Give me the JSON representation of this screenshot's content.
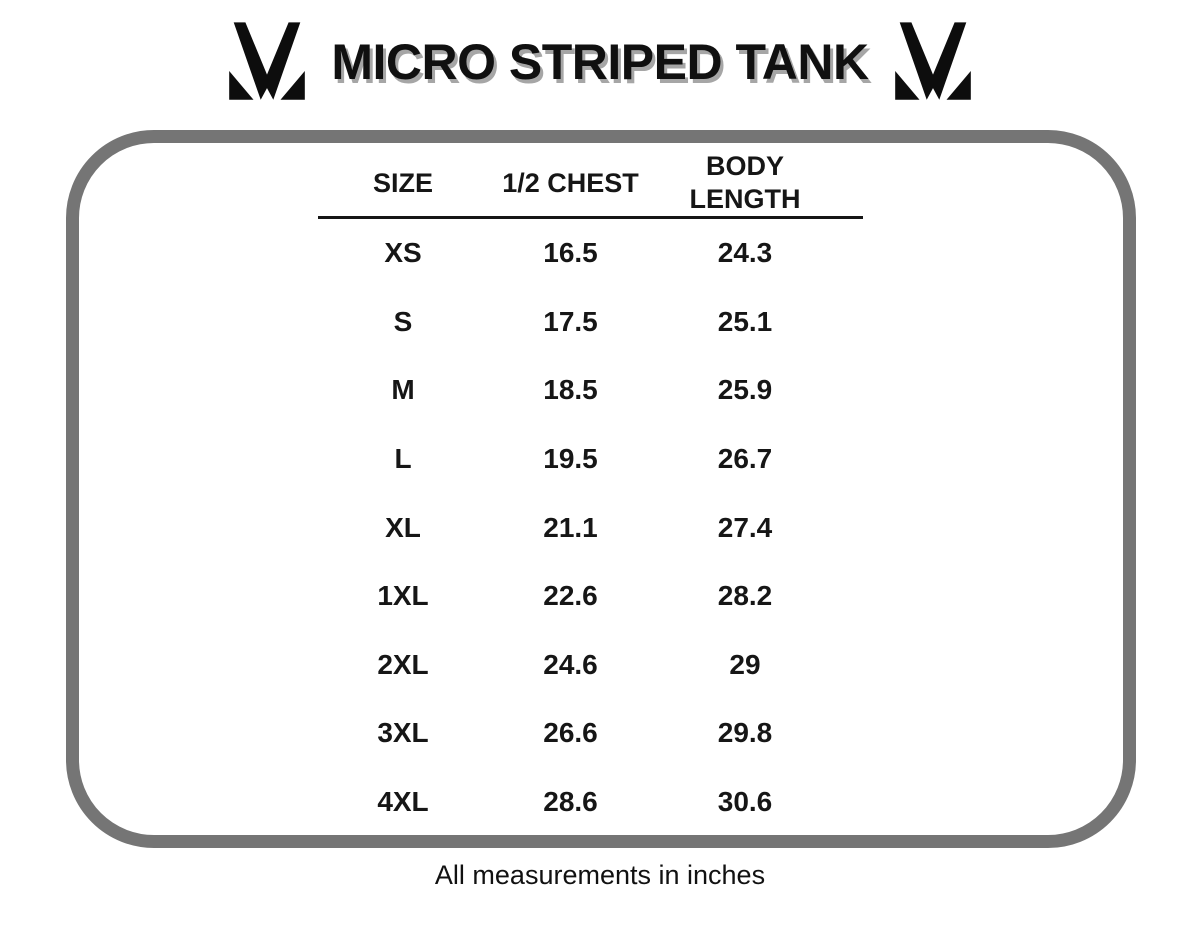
{
  "header": {
    "title": "MICRO STRIPED TANK",
    "logo_icon": "m-checkmark-logo"
  },
  "footer": {
    "note": "All measurements in inches"
  },
  "colors": {
    "text": "#161616",
    "box_border": "#757575",
    "title_shadow": "#a6a6a6",
    "background": "#ffffff"
  },
  "chart_data": {
    "type": "table",
    "title": "MICRO STRIPED TANK",
    "columns": [
      "SIZE",
      "1/2 CHEST",
      "BODY LENGTH"
    ],
    "rows": [
      [
        "XS",
        "16.5",
        "24.3"
      ],
      [
        "S",
        "17.5",
        "25.1"
      ],
      [
        "M",
        "18.5",
        "25.9"
      ],
      [
        "L",
        "19.5",
        "26.7"
      ],
      [
        "XL",
        "21.1",
        "27.4"
      ],
      [
        "1XL",
        "22.6",
        "28.2"
      ],
      [
        "2XL",
        "24.6",
        "29"
      ],
      [
        "3XL",
        "26.6",
        "29.8"
      ],
      [
        "4XL",
        "28.6",
        "30.6"
      ]
    ],
    "units": "inches",
    "note": "All measurements in inches",
    "layout": {
      "grid": false,
      "header_divider": true
    }
  }
}
